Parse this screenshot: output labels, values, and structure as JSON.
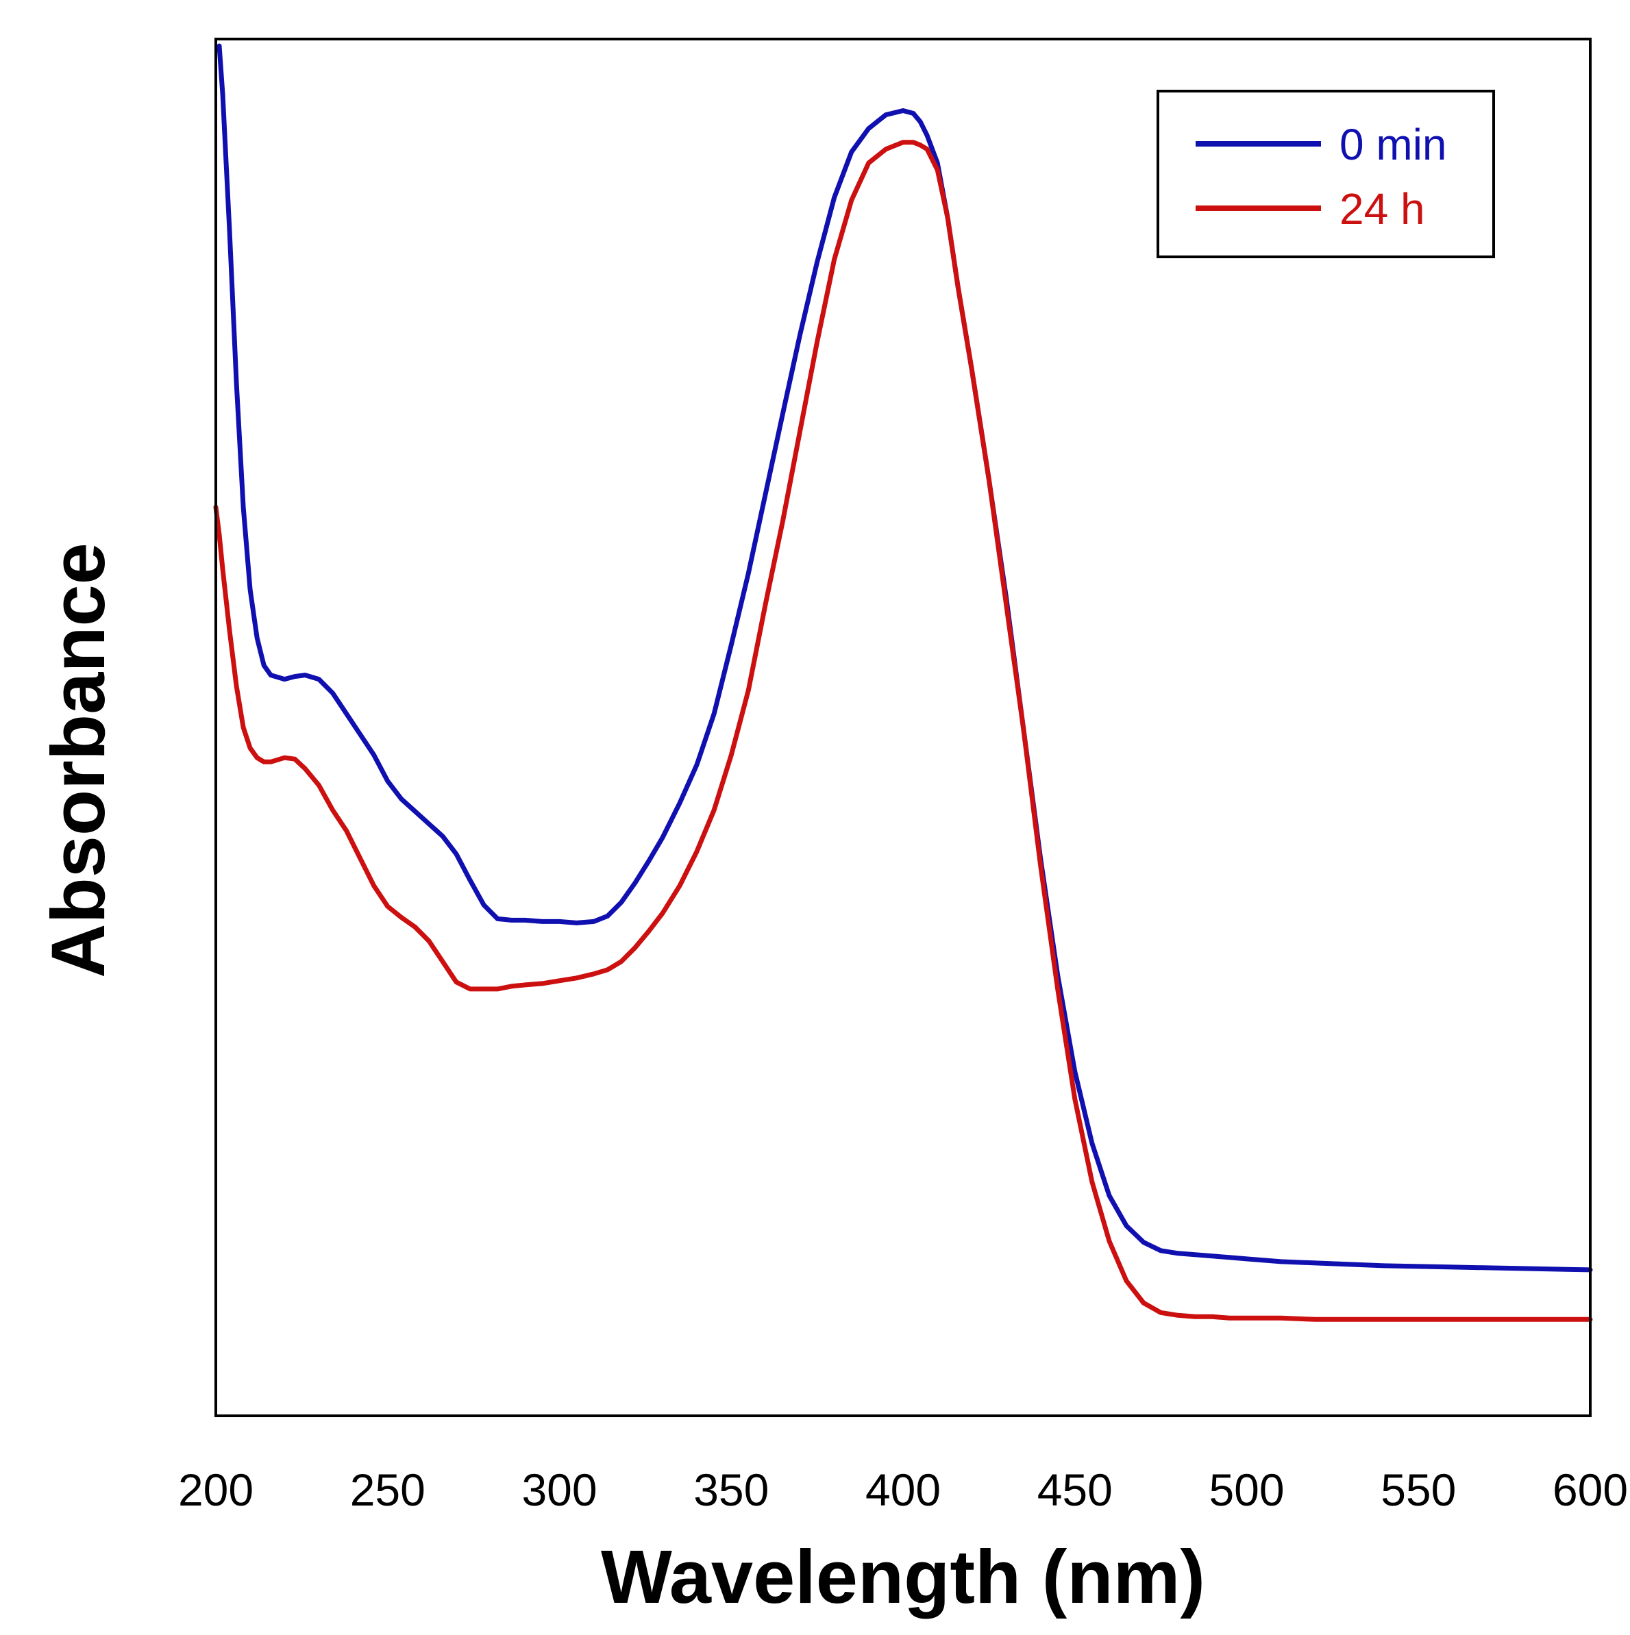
{
  "chart_data": {
    "type": "line",
    "title": "",
    "xlabel": "Wavelength (nm)",
    "ylabel": "Absorbance",
    "xlim": [
      200,
      600
    ],
    "ylim": [
      0,
      1
    ],
    "xticks": [
      200,
      250,
      300,
      350,
      400,
      450,
      500,
      550,
      600
    ],
    "yticks": [],
    "grid": false,
    "legend": {
      "position": "top-right",
      "entries": [
        "0 min",
        "24 h"
      ]
    },
    "series": [
      {
        "name": "0 min",
        "color": "#1010b0",
        "x": [
          201,
          202,
          204,
          206,
          208,
          210,
          212,
          214,
          216,
          220,
          223,
          226,
          230,
          234,
          238,
          242,
          246,
          250,
          254,
          258,
          262,
          266,
          270,
          274,
          278,
          282,
          286,
          290,
          295,
          300,
          305,
          310,
          314,
          318,
          322,
          326,
          330,
          335,
          340,
          345,
          350,
          355,
          360,
          365,
          370,
          375,
          380,
          385,
          390,
          395,
          400,
          403,
          405,
          407,
          410,
          413,
          416,
          420,
          425,
          430,
          435,
          440,
          445,
          450,
          455,
          460,
          465,
          470,
          475,
          480,
          485,
          490,
          495,
          500,
          510,
          520,
          540,
          560,
          580,
          600
        ],
        "values": [
          0.995,
          0.96,
          0.86,
          0.75,
          0.66,
          0.6,
          0.565,
          0.545,
          0.538,
          0.535,
          0.537,
          0.538,
          0.535,
          0.525,
          0.51,
          0.495,
          0.48,
          0.461,
          0.448,
          0.439,
          0.43,
          0.421,
          0.408,
          0.389,
          0.371,
          0.361,
          0.36,
          0.36,
          0.359,
          0.359,
          0.358,
          0.359,
          0.363,
          0.373,
          0.387,
          0.403,
          0.42,
          0.445,
          0.473,
          0.51,
          0.56,
          0.612,
          0.67,
          0.728,
          0.785,
          0.838,
          0.885,
          0.918,
          0.935,
          0.945,
          0.948,
          0.946,
          0.94,
          0.93,
          0.91,
          0.87,
          0.82,
          0.76,
          0.68,
          0.595,
          0.5,
          0.405,
          0.32,
          0.25,
          0.198,
          0.16,
          0.138,
          0.126,
          0.12,
          0.118,
          0.117,
          0.116,
          0.115,
          0.114,
          0.112,
          0.111,
          0.109,
          0.108,
          0.107,
          0.106
        ]
      },
      {
        "name": "24 h",
        "color": "#cc1010",
        "x": [
          200,
          201,
          202,
          204,
          206,
          208,
          210,
          212,
          214,
          216,
          220,
          223,
          226,
          230,
          234,
          238,
          242,
          246,
          250,
          254,
          258,
          262,
          266,
          270,
          274,
          278,
          282,
          286,
          290,
          295,
          300,
          305,
          310,
          314,
          318,
          322,
          326,
          330,
          335,
          340,
          345,
          350,
          355,
          360,
          365,
          370,
          375,
          380,
          385,
          390,
          395,
          400,
          403,
          405,
          407,
          410,
          413,
          416,
          420,
          425,
          430,
          435,
          440,
          445,
          450,
          455,
          460,
          465,
          470,
          475,
          480,
          485,
          490,
          495,
          500,
          510,
          520,
          540,
          560,
          580,
          600
        ],
        "values": [
          0.66,
          0.64,
          0.615,
          0.57,
          0.53,
          0.5,
          0.485,
          0.478,
          0.475,
          0.475,
          0.478,
          0.477,
          0.47,
          0.458,
          0.44,
          0.425,
          0.405,
          0.385,
          0.37,
          0.362,
          0.355,
          0.345,
          0.33,
          0.315,
          0.31,
          0.31,
          0.31,
          0.312,
          0.313,
          0.314,
          0.316,
          0.318,
          0.321,
          0.324,
          0.33,
          0.34,
          0.352,
          0.365,
          0.385,
          0.41,
          0.44,
          0.48,
          0.527,
          0.59,
          0.65,
          0.715,
          0.78,
          0.84,
          0.883,
          0.91,
          0.92,
          0.925,
          0.925,
          0.923,
          0.92,
          0.905,
          0.87,
          0.82,
          0.76,
          0.68,
          0.59,
          0.5,
          0.4,
          0.31,
          0.23,
          0.17,
          0.127,
          0.098,
          0.082,
          0.075,
          0.073,
          0.072,
          0.072,
          0.071,
          0.071,
          0.071,
          0.07,
          0.07,
          0.07,
          0.07,
          0.07
        ]
      }
    ]
  }
}
